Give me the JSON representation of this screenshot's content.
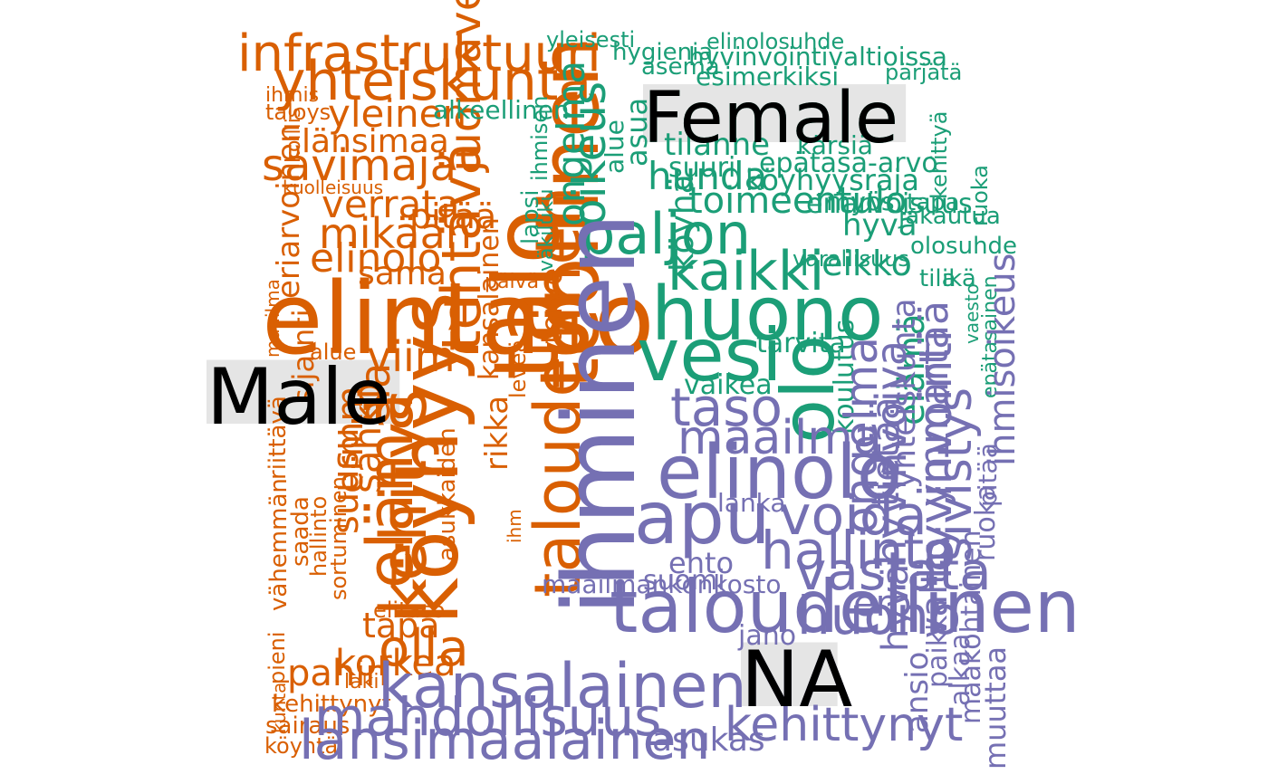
{
  "chart_data": {
    "type": "wordcloud",
    "groups": [
      {
        "name": "Male",
        "color": "#d95f02"
      },
      {
        "name": "Female",
        "color": "#1b9e77"
      },
      {
        "name": "NA",
        "color": "#7570b3"
      }
    ],
    "words": {
      "Male": [
        "infrastruktuuri",
        "yhteiskunta",
        "teollinen",
        "ihmis",
        "taloys",
        "yleinen",
        "länsimaa",
        "savimaja",
        "kuolleisuus",
        "koillis",
        "juomavesi",
        "verrata",
        "pitää",
        "mikään",
        "eriarvoinen",
        "elinolo",
        "talo",
        "tehtävä",
        "sama",
        "päivä",
        "elintaso",
        "alue",
        "viim",
        "Male",
        "kansalainen",
        "köyhyys",
        "sijainti",
        "leveä",
        "olla",
        "kehitys",
        "riittävä",
        "saada",
        "hallinto",
        "sortuminen",
        "sähkö",
        "taloudellinen",
        "vähemmän",
        "suusu",
        "ela",
        "ermm",
        "elämä",
        "asukkaiden",
        "ihm",
        "tapa",
        "elitaso",
        "korkea",
        "pieni",
        "pahin",
        "kehittynyt",
        "sairaus",
        "köyhtä",
        "laki",
        "rikka",
        "terve",
        "maailma",
        "kunta"
      ],
      "Female": [
        "yleisesti",
        "hygienia",
        "elinolosuhde",
        "hyvinvointivaltioissa",
        "asema",
        "esimerkiksi",
        "pärjätä",
        "alkeellinen",
        "Female",
        "tilanne",
        "kärsiä",
        "suuri",
        "epätasa-arvo",
        "hunda",
        "köyhyysraja",
        "toimeentulo",
        "eriarvoisuus",
        "myös",
        "tapa",
        "asua",
        "oikeus",
        "paljon",
        "alue",
        "olosuhde",
        "jakautua",
        "hyvä",
        "kaikki",
        "heikko",
        "väkiluku",
        "tila",
        "varallisuus",
        "ikä",
        "huono",
        "koulutus",
        "ongelma",
        "vesi",
        "olo",
        "tarvita",
        "vaikea",
        "lapsi",
        "elämä",
        "köyhä",
        "epätasainen",
        "vaesto",
        "kehittyä",
        "ihmisen",
        "ruoka"
      ],
      "NA": [
        "ihminen",
        "taso",
        "maailma",
        "elinolo",
        "voida",
        "apu",
        "hallinto",
        "vastata",
        "ehto",
        "taloudellinen",
        "suomi",
        "kansalainen",
        "mahdollisuus",
        "lansimaalainen",
        "NA",
        "kehittynyt",
        "asukas",
        "hyvinvointi",
        "valtio",
        "ongelma",
        "jano",
        "ansio",
        "huono",
        "alkaa",
        "hyvä",
        "paikka",
        "muuttaa",
        "maakohtainen",
        "ruoka",
        "yhteiskunta",
        "maailmankonkosto",
        "ero",
        "hyvinvoiva",
        "lanka",
        "pitää",
        "tietää",
        "ymmärtää",
        "sivistys",
        "ihmisoikeus"
      ]
    }
  }
}
